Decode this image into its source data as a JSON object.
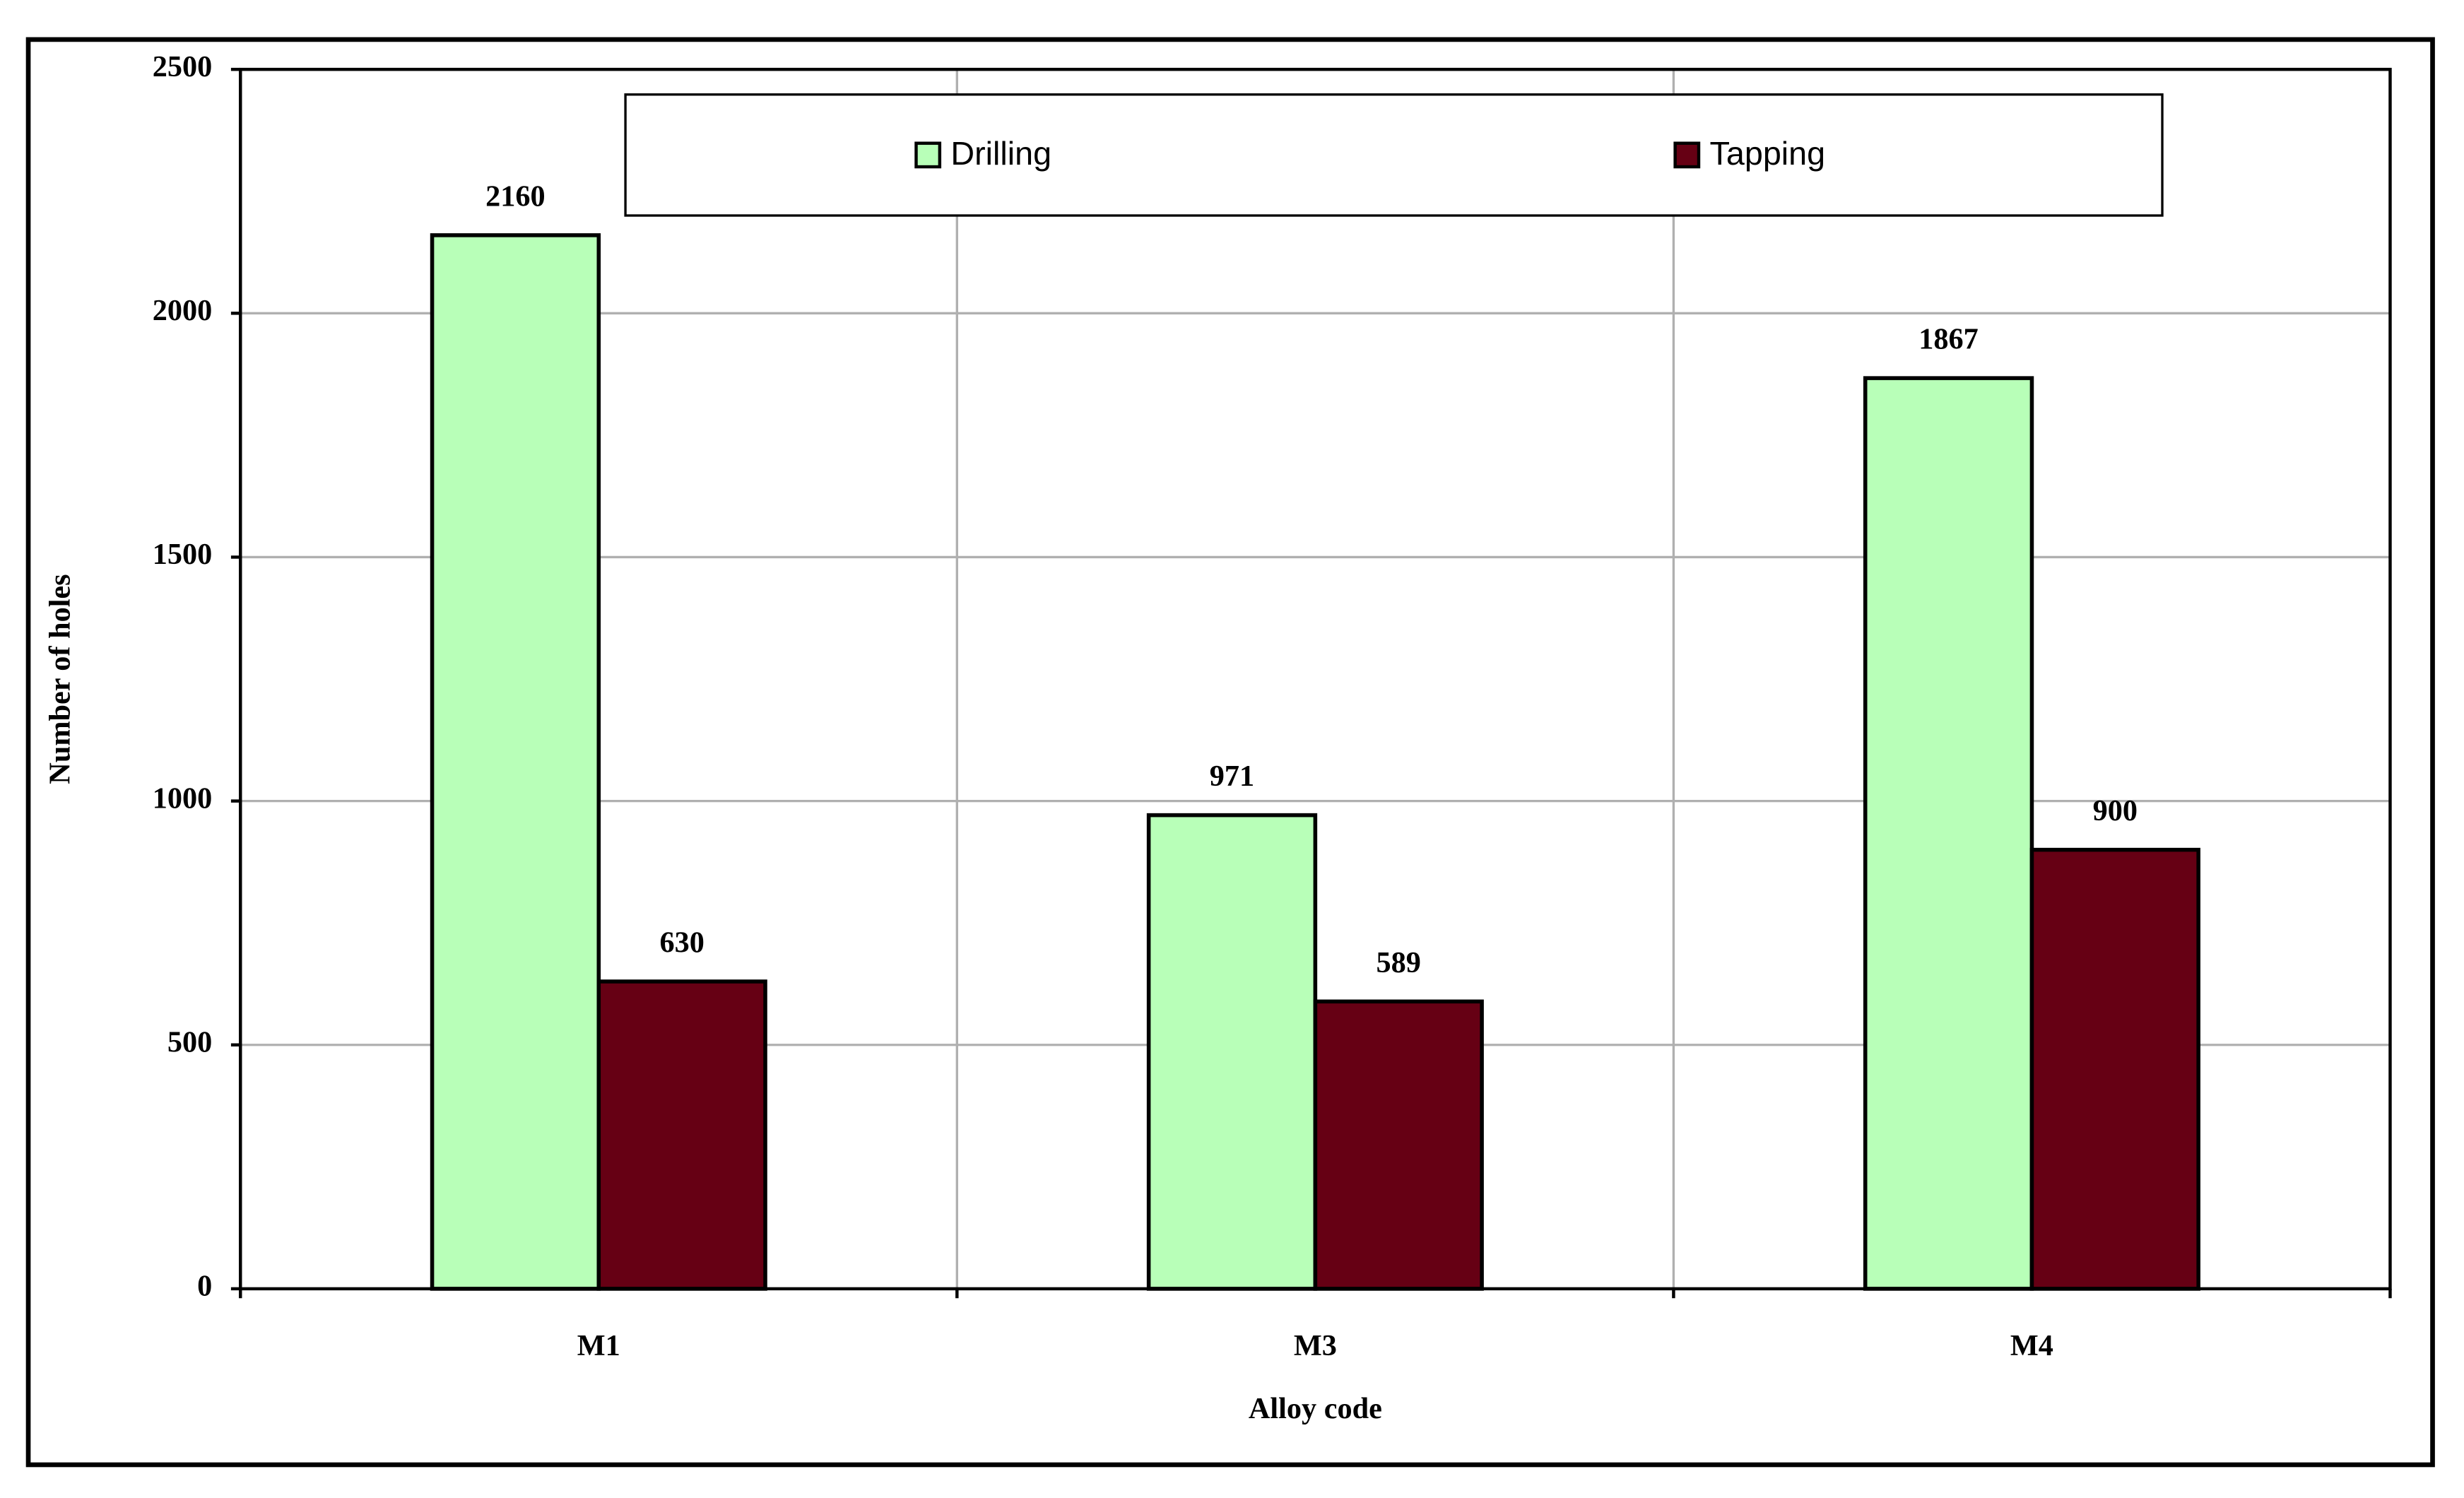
{
  "chart_data": {
    "type": "bar",
    "x_label": "Alloy code",
    "y_label": "Number of holes",
    "categories": [
      "M1",
      "M3",
      "M4"
    ],
    "series": [
      {
        "name": "Drilling",
        "color": "#b8ffb8",
        "values": [
          2160,
          971,
          1867
        ]
      },
      {
        "name": "Tapping",
        "color": "#660014",
        "values": [
          630,
          589,
          900
        ]
      }
    ],
    "ylim": [
      0,
      2500
    ],
    "yticks": [
      0,
      500,
      1000,
      1500,
      2000,
      2500
    ],
    "grid": true,
    "legend": "top"
  }
}
